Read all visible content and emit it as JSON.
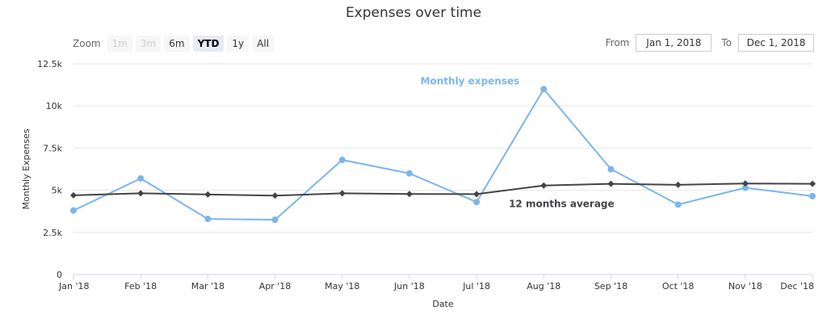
{
  "title": "Expenses over time",
  "zoom": {
    "label": "Zoom",
    "buttons": [
      {
        "label": "1m",
        "state": "disabled"
      },
      {
        "label": "3m",
        "state": "disabled"
      },
      {
        "label": "6m",
        "state": "normal"
      },
      {
        "label": "YTD",
        "state": "selected"
      },
      {
        "label": "1y",
        "state": "normal"
      },
      {
        "label": "All",
        "state": "normal"
      }
    ]
  },
  "range": {
    "from_label": "From",
    "from_value": "Jan 1, 2018",
    "to_label": "To",
    "to_value": "Dec 1, 2018"
  },
  "chart_data": {
    "type": "line",
    "xlabel": "Date",
    "ylabel": "Monthly Expenses",
    "ylim": [
      0,
      12500
    ],
    "yticks": [
      0,
      2500,
      5000,
      7500,
      10000,
      12500
    ],
    "ytick_labels": [
      "0",
      "2.5k",
      "5k",
      "7.5k",
      "10k",
      "12.5k"
    ],
    "categories": [
      "Jan '18",
      "Feb '18",
      "Mar '18",
      "Apr '18",
      "May '18",
      "Jun '18",
      "Jul '18",
      "Aug '18",
      "Sep '18",
      "Oct '18",
      "Nov '18",
      "Dec '18"
    ],
    "grid": true,
    "series": [
      {
        "name": "Monthly expenses",
        "color": "#7cb5ec",
        "marker": "circle",
        "values": [
          3800,
          5700,
          3300,
          3250,
          6800,
          6000,
          4300,
          11000,
          6250,
          4150,
          5150,
          4650
        ]
      },
      {
        "name": "12 months average",
        "color": "#434348",
        "marker": "diamond",
        "values": [
          4700,
          4820,
          4750,
          4680,
          4820,
          4780,
          4770,
          5280,
          5380,
          5320,
          5400,
          5380
        ]
      }
    ]
  }
}
